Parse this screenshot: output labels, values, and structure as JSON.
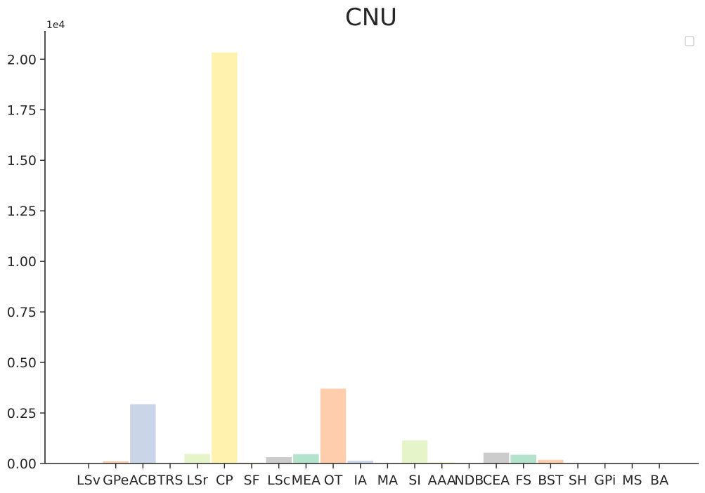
{
  "chart_data": {
    "type": "bar",
    "title": "CNU",
    "xlabel": "",
    "ylabel": "",
    "y_offset_label": "1e4",
    "y_scale_factor": 10000,
    "ylim": [
      0,
      21400
    ],
    "yticks": [
      0,
      2500,
      5000,
      7500,
      10000,
      12500,
      15000,
      17500,
      20000
    ],
    "ytick_labels": [
      "0.00",
      "0.25",
      "0.50",
      "0.75",
      "1.00",
      "1.25",
      "1.50",
      "1.75",
      "2.00"
    ],
    "grid": false,
    "legend": "top-right (empty)",
    "categories": [
      "LSv",
      "GPe",
      "ACB",
      "TRS",
      "LSr",
      "CP",
      "SF",
      "LSc",
      "MEA",
      "OT",
      "IA",
      "MA",
      "SI",
      "AAA",
      "NDB",
      "CEA",
      "FS",
      "BST",
      "SH",
      "GPi",
      "MS",
      "BA"
    ],
    "values": [
      0,
      130,
      2950,
      0,
      490,
      20350,
      60,
      330,
      480,
      3720,
      160,
      0,
      1160,
      70,
      0,
      550,
      450,
      200,
      0,
      0,
      0,
      0
    ],
    "colors": [
      "#b3e2cd",
      "#fdcdac",
      "#cbd5e8",
      "#f4cae4",
      "#e6f5c9",
      "#fff2ae",
      "#f1e2cc",
      "#cccccc",
      "#b3e2cd",
      "#fdcdac",
      "#cbd5e8",
      "#f4cae4",
      "#e6f5c9",
      "#fff2ae",
      "#f1e2cc",
      "#cccccc",
      "#b3e2cd",
      "#fdcdac",
      "#cbd5e8",
      "#f4cae4",
      "#e6f5c9",
      "#fff2ae"
    ]
  }
}
